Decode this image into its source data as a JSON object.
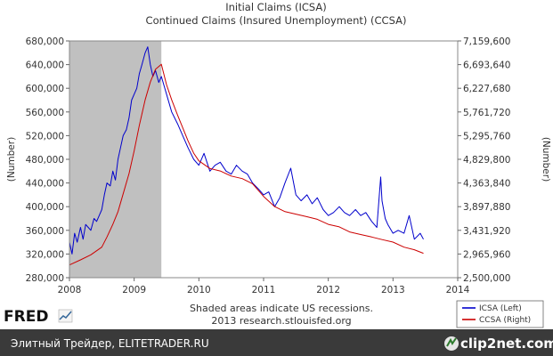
{
  "branding": {
    "fred_logo": "FRED",
    "fred_icon": "chart-line-icon",
    "source_note_line1": "Shaded areas indicate US recessions.",
    "source_note_line2": "2013 research.stlouisfed.org"
  },
  "footer": {
    "text": "Элитный Трейдер, ELITETRADER.RU",
    "logo_text": "clip2net.com",
    "logo_icon": "clip2net-icon",
    "background_color": "#3a3a3a"
  },
  "chart_data": {
    "type": "line",
    "title": "Initial Claims (ICSA)",
    "subtitle": "Continued Claims (Insured Unemployment) (CCSA)",
    "ylabel_left": "(Number)",
    "ylabel_right": "(Number)",
    "xlim": [
      2008,
      2014
    ],
    "ylim_left": [
      280000,
      680000
    ],
    "ylim_right": [
      2500000,
      7159600
    ],
    "x_ticks": [
      "2008",
      "2009",
      "2010",
      "2011",
      "2012",
      "2013",
      "2014"
    ],
    "y_ticks_left": [
      "280,000",
      "320,000",
      "360,000",
      "400,000",
      "440,000",
      "480,000",
      "520,000",
      "560,000",
      "600,000",
      "640,000",
      "680,000"
    ],
    "y_ticks_right": [
      "2,500,000",
      "2,965,960",
      "3,431,920",
      "3,897,880",
      "4,363,840",
      "4,829,800",
      "5,295,760",
      "5,761,720",
      "6,227,680",
      "6,693,640",
      "7,159,600"
    ],
    "recession": {
      "start": 2008.0,
      "end": 2009.42,
      "color": "#c0c0c0"
    },
    "legend_position": "bottom-right",
    "grid": false,
    "series": [
      {
        "name": "ICSA (Left)",
        "axis": "left",
        "color": "#0000cc",
        "x": [
          2008.0,
          2008.04,
          2008.08,
          2008.12,
          2008.17,
          2008.21,
          2008.25,
          2008.29,
          2008.33,
          2008.38,
          2008.42,
          2008.46,
          2008.5,
          2008.54,
          2008.58,
          2008.63,
          2008.67,
          2008.71,
          2008.75,
          2008.79,
          2008.83,
          2008.88,
          2008.92,
          2008.96,
          2009.0,
          2009.04,
          2009.08,
          2009.12,
          2009.17,
          2009.21,
          2009.25,
          2009.29,
          2009.33,
          2009.38,
          2009.42,
          2009.5,
          2009.58,
          2009.67,
          2009.75,
          2009.83,
          2009.92,
          2010.0,
          2010.08,
          2010.17,
          2010.25,
          2010.33,
          2010.42,
          2010.5,
          2010.58,
          2010.67,
          2010.75,
          2010.83,
          2010.92,
          2011.0,
          2011.08,
          2011.17,
          2011.25,
          2011.33,
          2011.42,
          2011.5,
          2011.58,
          2011.67,
          2011.75,
          2011.83,
          2011.92,
          2012.0,
          2012.08,
          2012.17,
          2012.25,
          2012.33,
          2012.42,
          2012.5,
          2012.58,
          2012.67,
          2012.75,
          2012.81,
          2012.83,
          2012.88,
          2012.92,
          2013.0,
          2013.08,
          2013.17,
          2013.25,
          2013.33,
          2013.42,
          2013.47
        ],
        "values": [
          340000,
          320000,
          355000,
          340000,
          365000,
          345000,
          370000,
          365000,
          360000,
          380000,
          375000,
          385000,
          395000,
          420000,
          440000,
          435000,
          460000,
          445000,
          480000,
          500000,
          520000,
          530000,
          550000,
          580000,
          590000,
          600000,
          625000,
          640000,
          660000,
          670000,
          640000,
          620000,
          630000,
          610000,
          620000,
          590000,
          560000,
          540000,
          520000,
          500000,
          480000,
          470000,
          490000,
          460000,
          470000,
          475000,
          460000,
          455000,
          470000,
          460000,
          455000,
          440000,
          430000,
          420000,
          425000,
          400000,
          415000,
          440000,
          465000,
          420000,
          410000,
          420000,
          405000,
          415000,
          395000,
          385000,
          390000,
          400000,
          390000,
          385000,
          395000,
          385000,
          390000,
          375000,
          365000,
          450000,
          410000,
          380000,
          370000,
          355000,
          360000,
          355000,
          385000,
          345000,
          355000,
          345000
        ]
      },
      {
        "name": "CCSA (Right)",
        "axis": "right",
        "color": "#cc0000",
        "x": [
          2008.0,
          2008.17,
          2008.33,
          2008.5,
          2008.58,
          2008.67,
          2008.75,
          2008.83,
          2008.92,
          2009.0,
          2009.08,
          2009.17,
          2009.25,
          2009.33,
          2009.42,
          2009.5,
          2009.58,
          2009.67,
          2009.75,
          2009.83,
          2009.92,
          2010.0,
          2010.17,
          2010.33,
          2010.5,
          2010.67,
          2010.83,
          2011.0,
          2011.17,
          2011.33,
          2011.5,
          2011.67,
          2011.83,
          2012.0,
          2012.17,
          2012.33,
          2012.5,
          2012.67,
          2012.83,
          2013.0,
          2013.17,
          2013.33,
          2013.47
        ],
        "values": [
          2750000,
          2850000,
          2950000,
          3100000,
          3300000,
          3550000,
          3800000,
          4150000,
          4550000,
          5000000,
          5500000,
          6000000,
          6350000,
          6600000,
          6700000,
          6300000,
          6000000,
          5700000,
          5450000,
          5200000,
          4950000,
          4800000,
          4650000,
          4600000,
          4500000,
          4450000,
          4350000,
          4100000,
          3900000,
          3800000,
          3750000,
          3700000,
          3650000,
          3550000,
          3500000,
          3400000,
          3350000,
          3300000,
          3250000,
          3200000,
          3100000,
          3050000,
          2980000
        ]
      }
    ]
  }
}
